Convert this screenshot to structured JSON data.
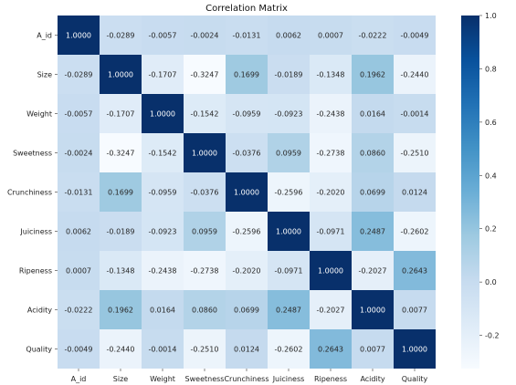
{
  "chart_data": {
    "type": "heatmap",
    "title": "Correlation Matrix",
    "xlabel": "",
    "ylabel": "",
    "x_categories": [
      "A_id",
      "Size",
      "Weight",
      "Sweetness",
      "Crunchiness",
      "Juiciness",
      "Ripeness",
      "Acidity",
      "Quality"
    ],
    "y_categories": [
      "A_id",
      "Size",
      "Weight",
      "Sweetness",
      "Crunchiness",
      "Juiciness",
      "Ripeness",
      "Acidity",
      "Quality"
    ],
    "values": [
      [
        "1.0000",
        "-0.0289",
        "-0.0057",
        "-0.0024",
        "-0.0131",
        "0.0062",
        "0.0007",
        "-0.0222",
        "-0.0049"
      ],
      [
        "-0.0289",
        "1.0000",
        "-0.1707",
        "-0.3247",
        "0.1699",
        "-0.0189",
        "-0.1348",
        "0.1962",
        "-0.2440"
      ],
      [
        "-0.0057",
        "-0.1707",
        "1.0000",
        "-0.1542",
        "-0.0959",
        "-0.0923",
        "-0.2438",
        "0.0164",
        "-0.0014"
      ],
      [
        "-0.0024",
        "-0.3247",
        "-0.1542",
        "1.0000",
        "-0.0376",
        "0.0959",
        "-0.2738",
        "0.0860",
        "-0.2510"
      ],
      [
        "-0.0131",
        "0.1699",
        "-0.0959",
        "-0.0376",
        "1.0000",
        "-0.2596",
        "-0.2020",
        "0.0699",
        "0.0124"
      ],
      [
        "0.0062",
        "-0.0189",
        "-0.0923",
        "0.0959",
        "-0.2596",
        "1.0000",
        "-0.0971",
        "0.2487",
        "-0.2602"
      ],
      [
        "0.0007",
        "-0.1348",
        "-0.2438",
        "-0.2738",
        "-0.2020",
        "-0.0971",
        "1.0000",
        "-0.2027",
        "0.2643"
      ],
      [
        "-0.0222",
        "0.1962",
        "0.0164",
        "0.0860",
        "0.0699",
        "0.2487",
        "-0.2027",
        "1.0000",
        "0.0077"
      ],
      [
        "-0.0049",
        "-0.2440",
        "-0.0014",
        "-0.2510",
        "0.0124",
        "-0.2602",
        "0.2643",
        "0.0077",
        "1.0000"
      ]
    ],
    "colorscale": {
      "name": "Blues",
      "vmin": -0.3247,
      "vmax": 1.0,
      "ticks": [
        "1.0",
        "0.8",
        "0.6",
        "0.4",
        "0.2",
        "0.0",
        "-0.2"
      ],
      "stops": [
        "#f7fbff",
        "#deebf7",
        "#c6dbef",
        "#9ecae1",
        "#6baed6",
        "#4292c6",
        "#2171b5",
        "#08519c",
        "#08306b"
      ]
    },
    "legend": "right"
  }
}
